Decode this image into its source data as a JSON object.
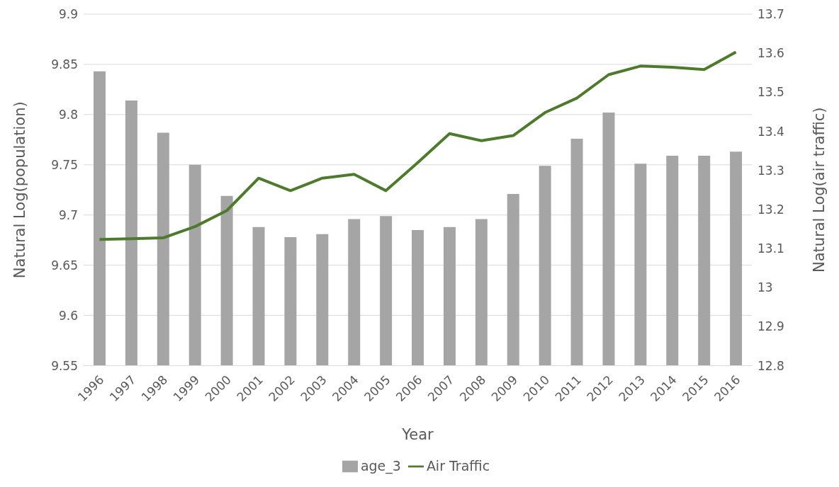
{
  "chart_data": {
    "type": "bar",
    "xlabel": "Year",
    "ylabel": "Natural Log(population)",
    "y2label": "Natural Log(air traffic)",
    "categories": [
      "1996",
      "1997",
      "1998",
      "1999",
      "2000",
      "2001",
      "2002",
      "2003",
      "2004",
      "2005",
      "2006",
      "2007",
      "2008",
      "2009",
      "2010",
      "2011",
      "2012",
      "2013",
      "2014",
      "2015",
      "2016"
    ],
    "series": [
      {
        "name": "age_3",
        "color": "#a5a5a5",
        "values": [
          9.843,
          9.814,
          9.782,
          9.75,
          9.719,
          9.688,
          9.678,
          9.681,
          9.696,
          9.699,
          9.685,
          9.688,
          9.696,
          9.721,
          9.749,
          9.776,
          9.802,
          9.751,
          9.759,
          9.759,
          9.763
        ]
      },
      {
        "name": "Air Traffic",
        "type": "line",
        "axis": "y2",
        "color": "#4e7a2e",
        "values": [
          13.123,
          13.125,
          13.127,
          13.156,
          13.197,
          13.28,
          13.248,
          13.28,
          13.29,
          13.248,
          13.32,
          13.394,
          13.376,
          13.389,
          13.448,
          13.485,
          13.545,
          13.567,
          13.564,
          13.558,
          13.603
        ]
      }
    ],
    "ylim": [
      9.55,
      9.9
    ],
    "yticks": [
      9.55,
      9.6,
      9.65,
      9.7,
      9.75,
      9.8,
      9.85,
      9.9
    ],
    "y2lim": [
      12.8,
      13.7
    ],
    "y2ticks": [
      12.8,
      12.9,
      13,
      13.1,
      13.2,
      13.3,
      13.4,
      13.5,
      13.6,
      13.7
    ],
    "grid": "y",
    "legend": "bottom",
    "marker": "none",
    "line_style": "solid"
  }
}
